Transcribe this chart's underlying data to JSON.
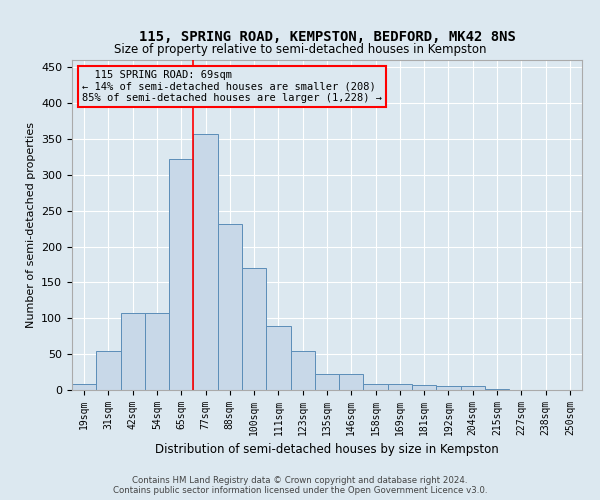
{
  "title": "115, SPRING ROAD, KEMPSTON, BEDFORD, MK42 8NS",
  "subtitle": "Size of property relative to semi-detached houses in Kempston",
  "xlabel": "Distribution of semi-detached houses by size in Kempston",
  "ylabel": "Number of semi-detached properties",
  "bar_color": "#c8d8e8",
  "bar_edge_color": "#5b8db8",
  "categories": [
    "19sqm",
    "31sqm",
    "42sqm",
    "54sqm",
    "65sqm",
    "77sqm",
    "88sqm",
    "100sqm",
    "111sqm",
    "123sqm",
    "135sqm",
    "146sqm",
    "158sqm",
    "169sqm",
    "181sqm",
    "192sqm",
    "204sqm",
    "215sqm",
    "227sqm",
    "238sqm",
    "250sqm"
  ],
  "values": [
    8,
    55,
    108,
    108,
    322,
    357,
    231,
    170,
    89,
    55,
    22,
    22,
    9,
    9,
    7,
    5,
    5,
    2,
    0,
    0,
    0
  ],
  "ylim": [
    0,
    460
  ],
  "yticks": [
    0,
    50,
    100,
    150,
    200,
    250,
    300,
    350,
    400,
    450
  ],
  "pct_smaller": 14,
  "pct_larger": 85,
  "n_smaller": 208,
  "n_larger": 1228,
  "vline_x": 4.5,
  "grid_color": "#ffffff",
  "bg_color": "#dce8f0",
  "footer_line1": "Contains HM Land Registry data © Crown copyright and database right 2024.",
  "footer_line2": "Contains public sector information licensed under the Open Government Licence v3.0."
}
